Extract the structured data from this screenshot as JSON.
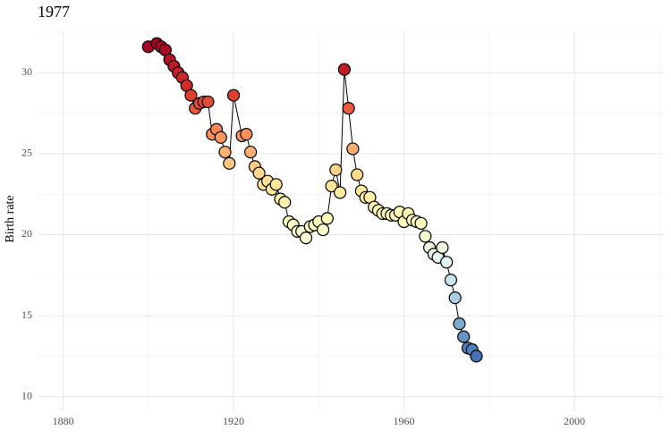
{
  "chart_data": {
    "type": "scatter",
    "title": "1977",
    "y_label": "Birth rate",
    "x": [
      1900,
      1902,
      1903,
      1904,
      1905,
      1906,
      1907,
      1908,
      1909,
      1910,
      1911,
      1912,
      1913,
      1914,
      1915,
      1916,
      1917,
      1918,
      1919,
      1920,
      1922,
      1923,
      1924,
      1925,
      1926,
      1927,
      1928,
      1929,
      1930,
      1931,
      1932,
      1933,
      1934,
      1935,
      1936,
      1937,
      1938,
      1939,
      1940,
      1941,
      1942,
      1943,
      1944,
      1945,
      1946,
      1947,
      1948,
      1949,
      1950,
      1951,
      1952,
      1953,
      1954,
      1955,
      1956,
      1957,
      1958,
      1959,
      1960,
      1961,
      1962,
      1963,
      1964,
      1965,
      1966,
      1967,
      1968,
      1969,
      1970,
      1971,
      1972,
      1973,
      1974,
      1975,
      1976,
      1977
    ],
    "values": [
      31.6,
      31.8,
      31.6,
      31.4,
      30.8,
      30.4,
      30.0,
      29.7,
      29.2,
      28.6,
      27.8,
      28.1,
      28.2,
      28.2,
      26.2,
      26.5,
      26.0,
      25.1,
      24.4,
      28.6,
      26.1,
      26.2,
      25.1,
      24.2,
      23.8,
      23.1,
      23.3,
      22.8,
      23.1,
      22.2,
      22.0,
      20.8,
      20.6,
      20.2,
      20.2,
      19.8,
      20.5,
      20.6,
      20.8,
      20.3,
      21.0,
      23.0,
      24.0,
      22.6,
      30.2,
      27.8,
      25.3,
      23.7,
      22.7,
      22.3,
      22.3,
      21.7,
      21.5,
      21.3,
      21.3,
      21.2,
      21.2,
      21.4,
      20.8,
      21.3,
      20.9,
      20.8,
      20.7,
      19.9,
      19.2,
      18.8,
      18.6,
      19.2,
      18.3,
      17.2,
      16.1,
      14.5,
      13.7,
      13.0,
      12.9,
      12.5
    ],
    "color_scale": [
      "#4575b4",
      "#91bfdb",
      "#e0f3f8",
      "#ffffbf",
      "#fee090",
      "#fc8d59",
      "#d73027",
      "#a50026"
    ],
    "xlim": [
      1874,
      2021
    ],
    "ylim": [
      9.1,
      32.5
    ],
    "xticks": [
      1880,
      1920,
      1960,
      2000
    ],
    "yticks": [
      10,
      15,
      20,
      25,
      30
    ],
    "grid": true
  }
}
